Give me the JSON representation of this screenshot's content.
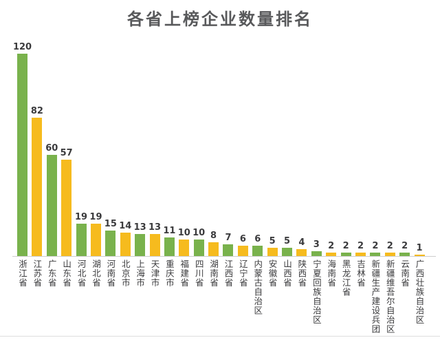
{
  "title": "各省上榜企业数量排名",
  "colors": {
    "background": "#ffffff",
    "title_text": "#58595b",
    "value_text": "#3b3b3d",
    "label_text": "#3b3b3d",
    "bar_green": "#79b24c",
    "bar_yellow": "#f6bb1e",
    "axis_line": "#cccccc",
    "divider_line": "#dedede"
  },
  "chart_data": {
    "type": "bar",
    "title": "各省上榜企业数量排名",
    "categories": [
      "浙江省",
      "江苏省",
      "广东省",
      "山东省",
      "河北省",
      "湖北省",
      "河南省",
      "北京市",
      "上海市",
      "天津市",
      "重庆市",
      "福建省",
      "四川省",
      "湖南省",
      "江西省",
      "辽宁省",
      "内蒙古自治区",
      "安徽省",
      "山西省",
      "陕西省",
      "宁夏回族自治区",
      "海南省",
      "黑龙江省",
      "吉林省",
      "新疆生产建设兵团",
      "新疆维吾尔自治区",
      "云南省",
      "广西壮族自治区"
    ],
    "values": [
      120,
      82,
      60,
      57,
      19,
      19,
      15,
      14,
      13,
      13,
      11,
      10,
      10,
      8,
      7,
      6,
      6,
      5,
      5,
      4,
      3,
      2,
      2,
      2,
      2,
      2,
      2,
      1
    ],
    "bar_color_pattern": [
      "#79b24c",
      "#f6bb1e"
    ],
    "value_labels_shown": true,
    "xlabel": "",
    "ylabel": "",
    "ylim": [
      0,
      130
    ],
    "grid": false,
    "legend": false,
    "x_tick_orientation": "vertical"
  }
}
